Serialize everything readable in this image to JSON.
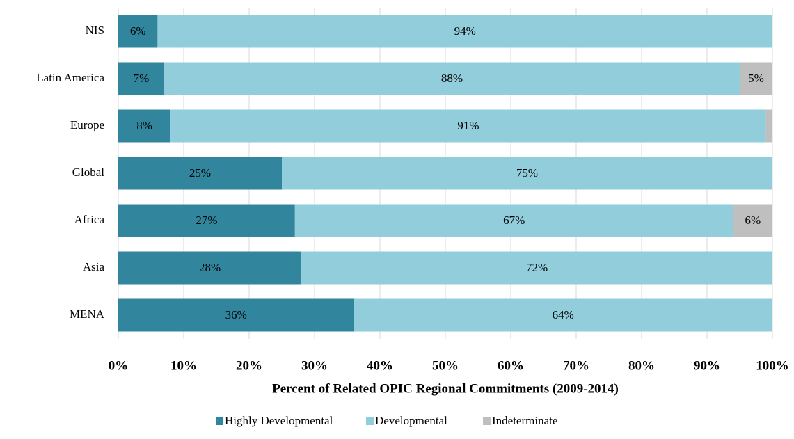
{
  "chart_data": {
    "type": "stacked-barh",
    "categories": [
      "NIS",
      "Latin America",
      "Europe",
      "Global",
      "Africa",
      "Asia",
      "MENA"
    ],
    "series": [
      {
        "name": "Highly Developmental",
        "color": "#31859c",
        "values": [
          6,
          7,
          8,
          25,
          27,
          28,
          36
        ],
        "value_labels": [
          "6%",
          "7%",
          "8%",
          "25%",
          "27%",
          "28%",
          "36%"
        ]
      },
      {
        "name": "Developmental",
        "color": "#92cddc",
        "values": [
          94,
          88,
          91,
          75,
          67,
          72,
          64
        ],
        "value_labels": [
          "94%",
          "88%",
          "91%",
          "75%",
          "67%",
          "72%",
          "64%"
        ]
      },
      {
        "name": "Indeterminate",
        "color": "#bfbfbf",
        "values": [
          null,
          5,
          1,
          null,
          6,
          null,
          null
        ],
        "value_labels": [
          null,
          "5%",
          null,
          null,
          "6%",
          null,
          null
        ]
      }
    ],
    "xlabel": "Percent of Related OPIC Regional Commitments (2009-2014)",
    "xlim": [
      0,
      100
    ],
    "xticks": [
      {
        "value": 0,
        "label": "0%"
      },
      {
        "value": 10,
        "label": "10%"
      },
      {
        "value": 20,
        "label": "20%"
      },
      {
        "value": 30,
        "label": "30%"
      },
      {
        "value": 40,
        "label": "40%"
      },
      {
        "value": 50,
        "label": "50%"
      },
      {
        "value": 60,
        "label": "60%"
      },
      {
        "value": 70,
        "label": "70%"
      },
      {
        "value": 80,
        "label": "80%"
      },
      {
        "value": 90,
        "label": "90%"
      },
      {
        "value": 100,
        "label": "100%"
      }
    ],
    "grid": true,
    "legend": "bottom"
  }
}
